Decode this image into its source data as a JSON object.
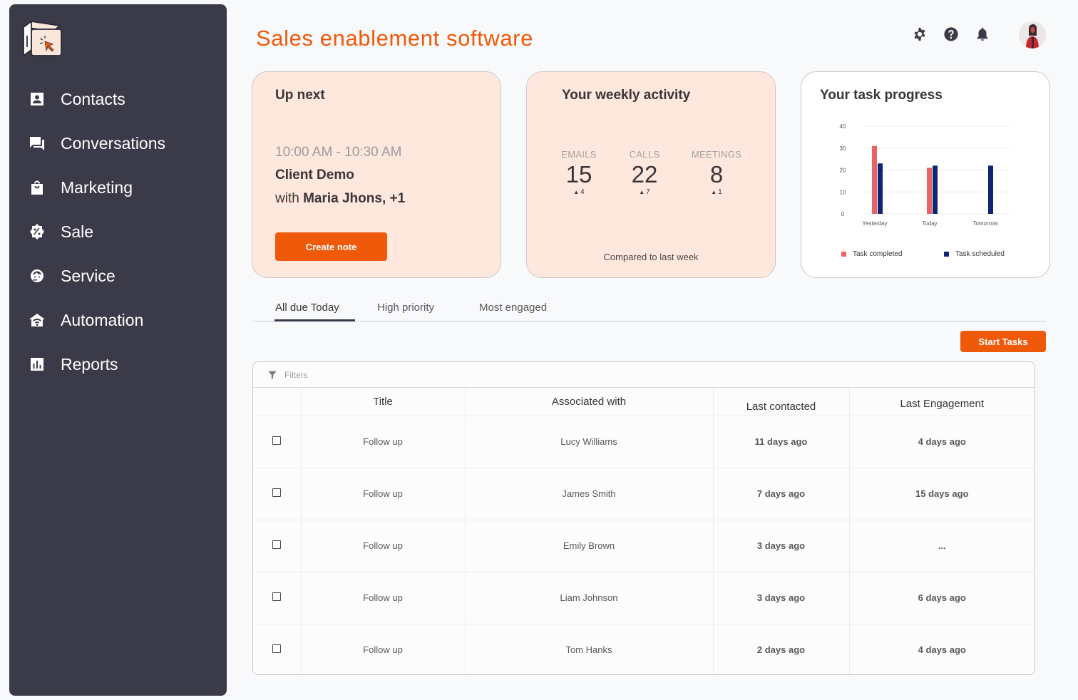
{
  "app": {
    "title": "Sales enablement software",
    "logo": "box-cursor-logo"
  },
  "sidebar": {
    "items": [
      {
        "label": "Contacts",
        "icon": "contact-card-icon"
      },
      {
        "label": "Conversations",
        "icon": "chat-bubbles-icon"
      },
      {
        "label": "Marketing",
        "icon": "shopping-bag-icon"
      },
      {
        "label": "Sale",
        "icon": "discount-badge-icon"
      },
      {
        "label": "Service",
        "icon": "support-agent-icon"
      },
      {
        "label": "Automation",
        "icon": "smart-home-icon"
      },
      {
        "label": "Reports",
        "icon": "bar-chart-icon"
      }
    ]
  },
  "header": {
    "icons": [
      "gear-icon",
      "help-icon",
      "bell-icon"
    ],
    "avatar": "user-avatar"
  },
  "up_next": {
    "title": "Up next",
    "time": "10:00 AM - 10:30 AM",
    "event": "Client Demo",
    "with_prefix": "with ",
    "with_names": "Maria Jhons, +1",
    "button": "Create note"
  },
  "weekly_activity": {
    "title": "Your weekly activity",
    "stats": [
      {
        "label": "EMAILS",
        "value": "15",
        "delta": "4"
      },
      {
        "label": "CALLS",
        "value": "22",
        "delta": "7"
      },
      {
        "label": "MEETINGS",
        "value": "8",
        "delta": "1"
      }
    ],
    "footer": "Compared to last week"
  },
  "task_progress": {
    "title": "Your task progress",
    "legend": [
      {
        "label": "Task completed",
        "color": "#e86363"
      },
      {
        "label": "Task scheduled",
        "color": "#0f2473"
      }
    ]
  },
  "chart_data": {
    "type": "bar",
    "title": "Your task progress",
    "categories": [
      "Yesterday",
      "Today",
      "Tomorrow"
    ],
    "series": [
      {
        "name": "Task completed",
        "color": "#e86363",
        "values": [
          31,
          21,
          0
        ]
      },
      {
        "name": "Task scheduled",
        "color": "#0f2473",
        "values": [
          23,
          22,
          22
        ]
      }
    ],
    "yticks": [
      0,
      10,
      20,
      30,
      40
    ],
    "ylim": [
      0,
      40
    ],
    "xlabel": "",
    "ylabel": "",
    "grid": true,
    "legend_position": "bottom"
  },
  "tabs": {
    "items": [
      "All due Today",
      "High priority",
      "Most engaged"
    ],
    "active": 0
  },
  "actions": {
    "start_tasks": "Start Tasks"
  },
  "table": {
    "filters_label": "Filters",
    "columns": [
      "",
      "Title",
      "Associated with",
      "Last contacted",
      "Last Engagement"
    ],
    "rows": [
      {
        "title": "Follow up",
        "associated": "Lucy Williams",
        "last_contacted": "11 days ago",
        "last_engagement": "4 days ago"
      },
      {
        "title": "Follow up",
        "associated": "James Smith",
        "last_contacted": "7 days ago",
        "last_engagement": "15 days ago"
      },
      {
        "title": "Follow up",
        "associated": "Emily Brown",
        "last_contacted": "3 days ago",
        "last_engagement": "..."
      },
      {
        "title": "Follow up",
        "associated": "Liam Johnson",
        "last_contacted": "3 days ago",
        "last_engagement": "6 days ago"
      },
      {
        "title": "Follow up",
        "associated": "Tom Hanks",
        "last_contacted": "2 days ago",
        "last_engagement": "4 days ago"
      }
    ]
  },
  "colors": {
    "accent": "#ee5a0a",
    "sidebar_bg": "#3b3a48",
    "card_peach": "#fee8dd"
  }
}
